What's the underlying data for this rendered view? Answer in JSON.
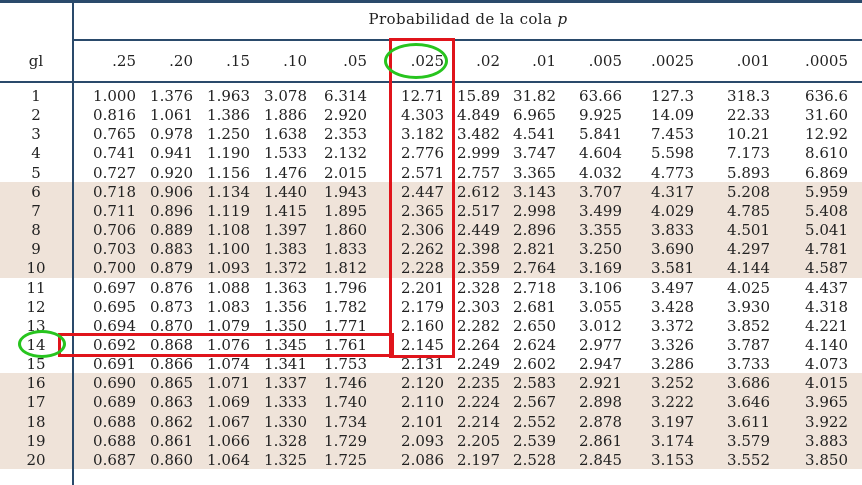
{
  "table": {
    "caption_text": "Probabilidad de la cola ",
    "caption_var": "p",
    "row_header": "gl",
    "columns": [
      ".25",
      ".20",
      ".15",
      ".10",
      ".05",
      ".025",
      ".02",
      ".01",
      ".005",
      ".0025",
      ".001",
      ".0005"
    ],
    "rows": [
      {
        "gl": "1",
        "values": [
          "1.000",
          "1.376",
          "1.963",
          "3.078",
          "6.314",
          "12.71",
          "15.89",
          "31.82",
          "63.66",
          "127.3",
          "318.3",
          "636.6"
        ]
      },
      {
        "gl": "2",
        "values": [
          "0.816",
          "1.061",
          "1.386",
          "1.886",
          "2.920",
          "4.303",
          "4.849",
          "6.965",
          "9.925",
          "14.09",
          "22.33",
          "31.60"
        ]
      },
      {
        "gl": "3",
        "values": [
          "0.765",
          "0.978",
          "1.250",
          "1.638",
          "2.353",
          "3.182",
          "3.482",
          "4.541",
          "5.841",
          "7.453",
          "10.21",
          "12.92"
        ]
      },
      {
        "gl": "4",
        "values": [
          "0.741",
          "0.941",
          "1.190",
          "1.533",
          "2.132",
          "2.776",
          "2.999",
          "3.747",
          "4.604",
          "5.598",
          "7.173",
          "8.610"
        ]
      },
      {
        "gl": "5",
        "values": [
          "0.727",
          "0.920",
          "1.156",
          "1.476",
          "2.015",
          "2.571",
          "2.757",
          "3.365",
          "4.032",
          "4.773",
          "5.893",
          "6.869"
        ]
      },
      {
        "gl": "6",
        "values": [
          "0.718",
          "0.906",
          "1.134",
          "1.440",
          "1.943",
          "2.447",
          "2.612",
          "3.143",
          "3.707",
          "4.317",
          "5.208",
          "5.959"
        ]
      },
      {
        "gl": "7",
        "values": [
          "0.711",
          "0.896",
          "1.119",
          "1.415",
          "1.895",
          "2.365",
          "2.517",
          "2.998",
          "3.499",
          "4.029",
          "4.785",
          "5.408"
        ]
      },
      {
        "gl": "8",
        "values": [
          "0.706",
          "0.889",
          "1.108",
          "1.397",
          "1.860",
          "2.306",
          "2.449",
          "2.896",
          "3.355",
          "3.833",
          "4.501",
          "5.041"
        ]
      },
      {
        "gl": "9",
        "values": [
          "0.703",
          "0.883",
          "1.100",
          "1.383",
          "1.833",
          "2.262",
          "2.398",
          "2.821",
          "3.250",
          "3.690",
          "4.297",
          "4.781"
        ]
      },
      {
        "gl": "10",
        "values": [
          "0.700",
          "0.879",
          "1.093",
          "1.372",
          "1.812",
          "2.228",
          "2.359",
          "2.764",
          "3.169",
          "3.581",
          "4.144",
          "4.587"
        ]
      },
      {
        "gl": "11",
        "values": [
          "0.697",
          "0.876",
          "1.088",
          "1.363",
          "1.796",
          "2.201",
          "2.328",
          "2.718",
          "3.106",
          "3.497",
          "4.025",
          "4.437"
        ]
      },
      {
        "gl": "12",
        "values": [
          "0.695",
          "0.873",
          "1.083",
          "1.356",
          "1.782",
          "2.179",
          "2.303",
          "2.681",
          "3.055",
          "3.428",
          "3.930",
          "4.318"
        ]
      },
      {
        "gl": "13",
        "values": [
          "0.694",
          "0.870",
          "1.079",
          "1.350",
          "1.771",
          "2.160",
          "2.282",
          "2.650",
          "3.012",
          "3.372",
          "3.852",
          "4.221"
        ]
      },
      {
        "gl": "14",
        "values": [
          "0.692",
          "0.868",
          "1.076",
          "1.345",
          "1.761",
          "2.145",
          "2.264",
          "2.624",
          "2.977",
          "3.326",
          "3.787",
          "4.140"
        ]
      },
      {
        "gl": "15",
        "values": [
          "0.691",
          "0.866",
          "1.074",
          "1.341",
          "1.753",
          "2.131",
          "2.249",
          "2.602",
          "2.947",
          "3.286",
          "3.733",
          "4.073"
        ]
      },
      {
        "gl": "16",
        "values": [
          "0.690",
          "0.865",
          "1.071",
          "1.337",
          "1.746",
          "2.120",
          "2.235",
          "2.583",
          "2.921",
          "3.252",
          "3.686",
          "4.015"
        ]
      },
      {
        "gl": "17",
        "values": [
          "0.689",
          "0.863",
          "1.069",
          "1.333",
          "1.740",
          "2.110",
          "2.224",
          "2.567",
          "2.898",
          "3.222",
          "3.646",
          "3.965"
        ]
      },
      {
        "gl": "18",
        "values": [
          "0.688",
          "0.862",
          "1.067",
          "1.330",
          "1.734",
          "2.101",
          "2.214",
          "2.552",
          "2.878",
          "3.197",
          "3.611",
          "3.922"
        ]
      },
      {
        "gl": "19",
        "values": [
          "0.688",
          "0.861",
          "1.066",
          "1.328",
          "1.729",
          "2.093",
          "2.205",
          "2.539",
          "2.861",
          "3.174",
          "3.579",
          "3.883"
        ]
      },
      {
        "gl": "20",
        "values": [
          "0.687",
          "0.860",
          "1.064",
          "1.325",
          "1.725",
          "2.086",
          "2.197",
          "2.528",
          "2.845",
          "3.153",
          "3.552",
          "3.850"
        ]
      }
    ],
    "shaded_row_groups": [
      [
        "6",
        "10"
      ],
      [
        "16",
        "20"
      ]
    ],
    "highlight": {
      "column": ".025",
      "row": "14",
      "box_color": "#e0141b",
      "circle_color": "#27c41e",
      "band_color": "#efe3d9",
      "rule_color": "#2a4a6b"
    }
  }
}
